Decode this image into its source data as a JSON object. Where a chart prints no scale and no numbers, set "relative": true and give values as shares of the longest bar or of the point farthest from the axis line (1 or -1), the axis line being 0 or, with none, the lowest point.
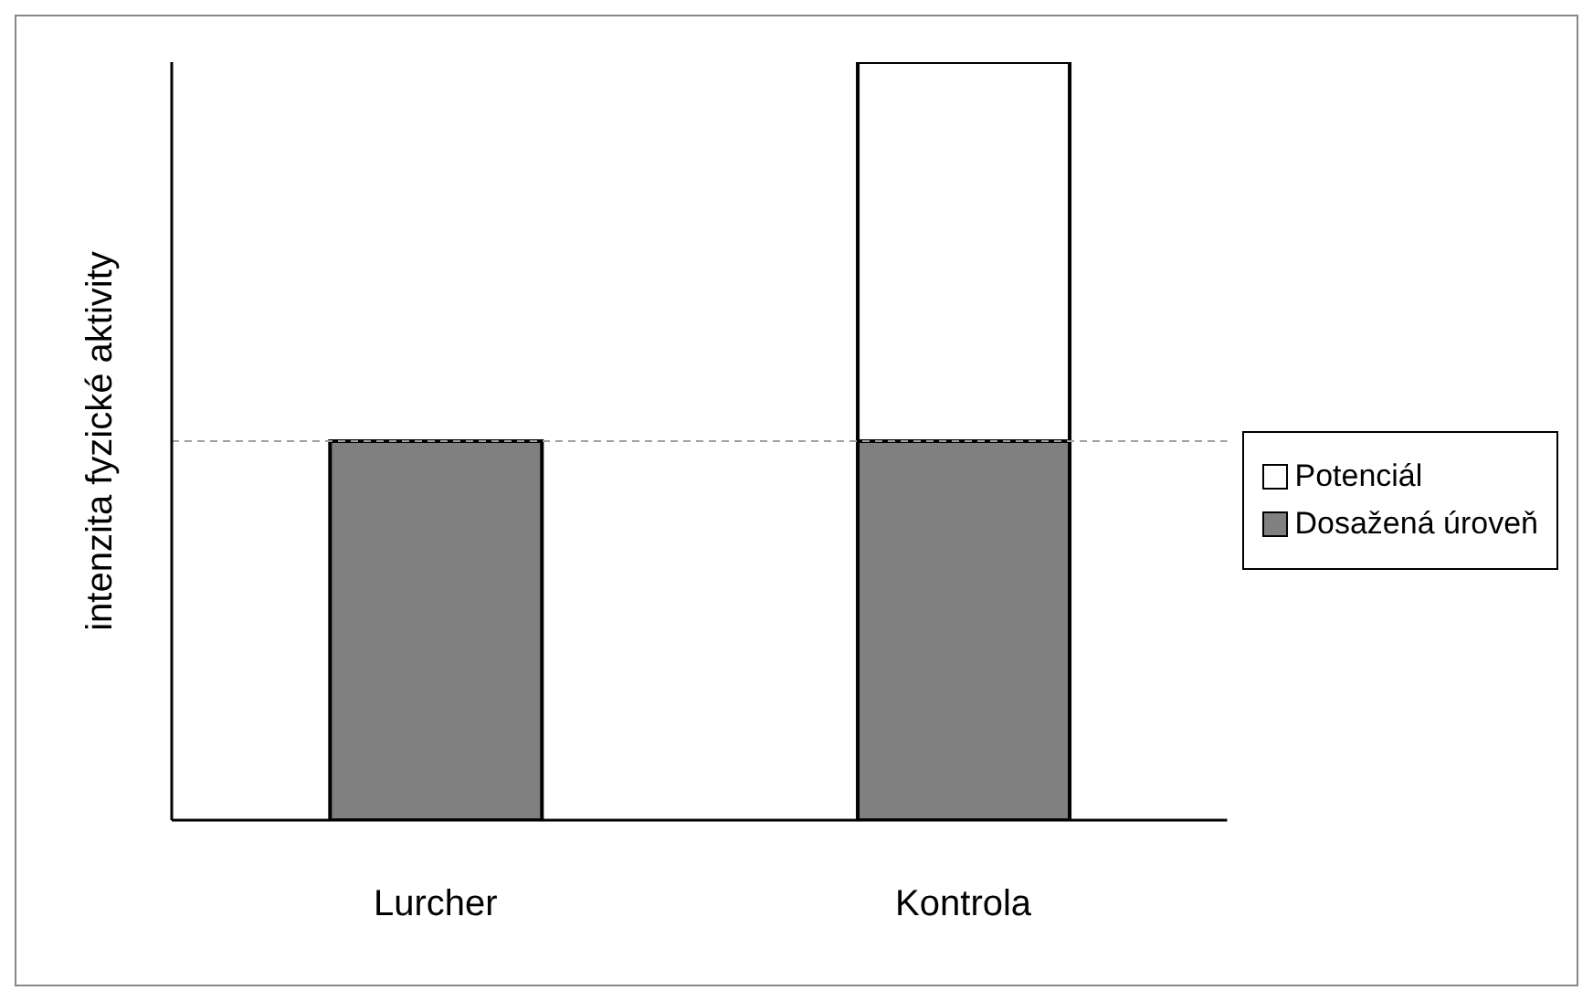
{
  "chart_data": {
    "type": "bar",
    "ylabel": "intenzita fyzické aktivity",
    "categories": [
      "Lurcher",
      "Kontrola"
    ],
    "stacked": true,
    "relative": true,
    "series": [
      {
        "name": "Dosažená úroveň",
        "color": "#808080",
        "values": [
          0.5,
          0.5
        ]
      },
      {
        "name": "Potenciál",
        "color": "#ffffff",
        "values": [
          0,
          0.5
        ]
      }
    ],
    "ref_lines": [
      {
        "axis": "y",
        "value": 0.5,
        "color": "#a0a0a0",
        "line_style": "dashed"
      }
    ],
    "legend": "right"
  }
}
